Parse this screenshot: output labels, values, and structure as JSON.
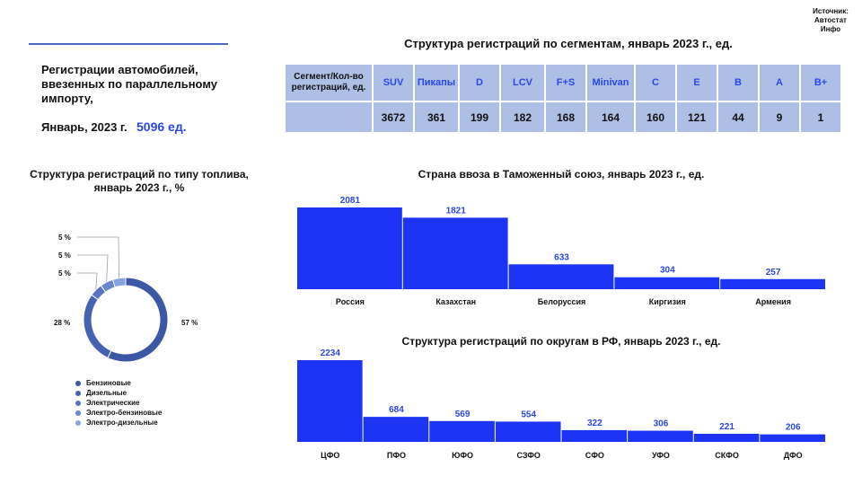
{
  "source": {
    "line1": "Источник:",
    "line2": "Автостат",
    "line3": "Инфо"
  },
  "headline": "Регистрации автомобилей, ввезенных по параллельному импорту,",
  "date_label": "Январь, 2023 г.",
  "total": "5096 ед.",
  "segments": {
    "title": "Структура регистраций по сегментам, январь 2023 г., ед.",
    "row_header": "Сегмент/Кол-во регистраций, ед.",
    "items": [
      {
        "label": "SUV",
        "value": "3672"
      },
      {
        "label": "Пикапы",
        "value": "361"
      },
      {
        "label": "D",
        "value": "199"
      },
      {
        "label": "LCV",
        "value": "182"
      },
      {
        "label": "F+S",
        "value": "168"
      },
      {
        "label": "Minivan",
        "value": "164"
      },
      {
        "label": "C",
        "value": "160"
      },
      {
        "label": "E",
        "value": "121"
      },
      {
        "label": "B",
        "value": "44"
      },
      {
        "label": "A",
        "value": "9"
      },
      {
        "label": "B+",
        "value": "1"
      }
    ]
  },
  "chart_data": [
    {
      "type": "pie",
      "title": "Структура регистраций по типу топлива, январь 2023 г., %",
      "slices": [
        {
          "name": "Бензиновые",
          "value": 57,
          "label": "57 %",
          "color": "#3b57a6"
        },
        {
          "name": "Дизельные",
          "value": 28,
          "label": "28 %",
          "color": "#4662b2"
        },
        {
          "name": "Электрические",
          "value": 5,
          "label": "5 %",
          "color": "#5773c2"
        },
        {
          "name": "Электро-бензиновые",
          "value": 5,
          "label": "5 %",
          "color": "#6a86d0"
        },
        {
          "name": "Электро-дизельные",
          "value": 5,
          "label": "5 %",
          "color": "#8aa3e0"
        }
      ],
      "legend": "bottom"
    },
    {
      "type": "bar",
      "title": "Страна ввоза в Таможенный союз, январь 2023 г., ед.",
      "categories": [
        "Россия",
        "Казахстан",
        "Белоруссия",
        "Киргизия",
        "Армения"
      ],
      "values": [
        2081,
        1821,
        633,
        304,
        257
      ],
      "color": "#1e34f5",
      "ylim": [
        0,
        2081
      ]
    },
    {
      "type": "bar",
      "title": "Структура регистраций по округам в РФ, январь 2023 г., ед.",
      "categories": [
        "ЦФО",
        "ПФО",
        "ЮФО",
        "СЗФО",
        "СФО",
        "УФО",
        "СКФО",
        "ДФО"
      ],
      "values": [
        2234,
        684,
        569,
        554,
        322,
        306,
        221,
        206
      ],
      "color": "#1e34f5",
      "ylim": [
        0,
        2234
      ]
    }
  ]
}
